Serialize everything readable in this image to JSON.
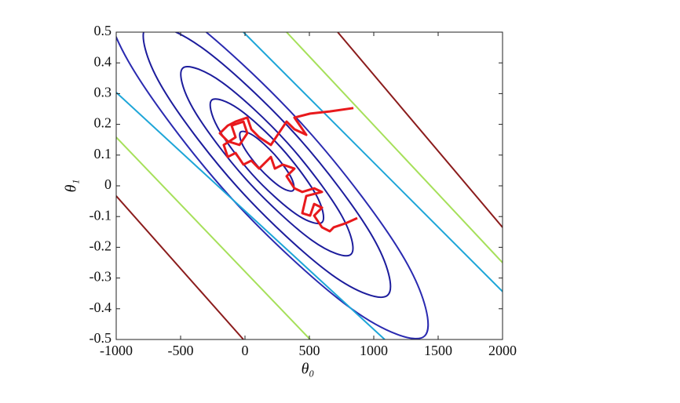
{
  "chart_data": {
    "type": "contour",
    "xlabel": "θ₀",
    "ylabel": "θ₁",
    "xlim": [
      -1000,
      2000
    ],
    "ylim": [
      -0.5,
      0.5
    ],
    "xticks": [
      -1000,
      -500,
      0,
      500,
      1000,
      1500,
      2000
    ],
    "yticks": [
      -0.5,
      -0.4,
      -0.3,
      -0.2,
      -0.1,
      0,
      0.1,
      0.2,
      0.3,
      0.4,
      0.5
    ],
    "contours": [
      {
        "color": "#1c1c9c",
        "closed": true,
        "x": [
          374,
          273,
          111,
          -16,
          -34,
          67,
          229,
          356
        ],
        "y": [
          -0.015,
          -0.003,
          0.058,
          0.131,
          0.175,
          0.163,
          0.102,
          0.029
        ]
      },
      {
        "color": "#1c1c9c",
        "closed": true,
        "x": [
          598,
          393,
          57,
          -213,
          -258,
          -53,
          283,
          553
        ],
        "y": [
          -0.119,
          -0.091,
          0.037,
          0.191,
          0.279,
          0.251,
          0.123,
          -0.03
        ]
      },
      {
        "color": "#1c1c9c",
        "closed": true,
        "x": [
          823,
          519,
          11,
          -404,
          -483,
          -179,
          329,
          744
        ],
        "y": [
          -0.223,
          -0.177,
          0.02,
          0.252,
          0.383,
          0.337,
          0.14,
          -0.092
        ]
      },
      {
        "color": "#1c1c9c",
        "closed": true,
        "x": [
          1108,
          673,
          -57,
          -654,
          -768,
          -333,
          397,
          994
        ],
        "y": [
          -0.356,
          -0.289,
          -0.005,
          0.328,
          0.516,
          0.449,
          0.165,
          -0.168
        ]
      },
      {
        "color": "#2a2ab0",
        "closed": true,
        "x": [
          1394,
          827,
          -125,
          -904,
          -1054,
          -487,
          465,
          1244
        ],
        "y": [
          -0.489,
          -0.4,
          -0.031,
          0.404,
          0.649,
          0.561,
          0.191,
          -0.242
        ]
      },
      {
        "color": "#1ea6d8",
        "closed": false,
        "x": [
          -1000,
          1085,
          null,
          -12,
          2000
        ],
        "y": [
          0.304,
          -0.5,
          null,
          0.5,
          -0.344
        ]
      },
      {
        "color": "#a6e05a",
        "closed": false,
        "x": [
          -1000,
          506,
          null,
          323,
          2000
        ],
        "y": [
          0.158,
          -0.5,
          null,
          0.5,
          -0.25
        ]
      },
      {
        "color": "#8b1c1c",
        "closed": false,
        "x": [
          -1000,
          -12,
          null,
          720,
          2000
        ],
        "y": [
          -0.033,
          -0.5,
          null,
          0.5,
          -0.135
        ]
      }
    ],
    "path": {
      "color": "#e8191c",
      "x": [
        872,
        781,
        689,
        659,
        598,
        537,
        598,
        537,
        506,
        445,
        476,
        598,
        537,
        445,
        384,
        323,
        384,
        293,
        232,
        201,
        110,
        49,
        -12,
        -73,
        -134,
        -165,
        -73,
        -104,
        -12,
        18,
        -43,
        -134,
        -195,
        -134,
        -73,
        18,
        49,
        110,
        201,
        262,
        323,
        384,
        476,
        384,
        506,
        659,
        842
      ],
      "y": [
        -0.105,
        -0.122,
        -0.135,
        -0.148,
        -0.135,
        -0.097,
        -0.071,
        -0.059,
        -0.097,
        -0.089,
        -0.033,
        -0.02,
        -0.008,
        -0.02,
        -0.008,
        0.031,
        0.056,
        0.069,
        0.056,
        0.094,
        0.056,
        0.082,
        0.069,
        0.107,
        0.094,
        0.133,
        0.158,
        0.196,
        0.209,
        0.171,
        0.133,
        0.145,
        0.171,
        0.196,
        0.209,
        0.222,
        0.184,
        0.158,
        0.133,
        0.171,
        0.209,
        0.184,
        0.166,
        0.222,
        0.235,
        0.242,
        0.253
      ]
    }
  }
}
